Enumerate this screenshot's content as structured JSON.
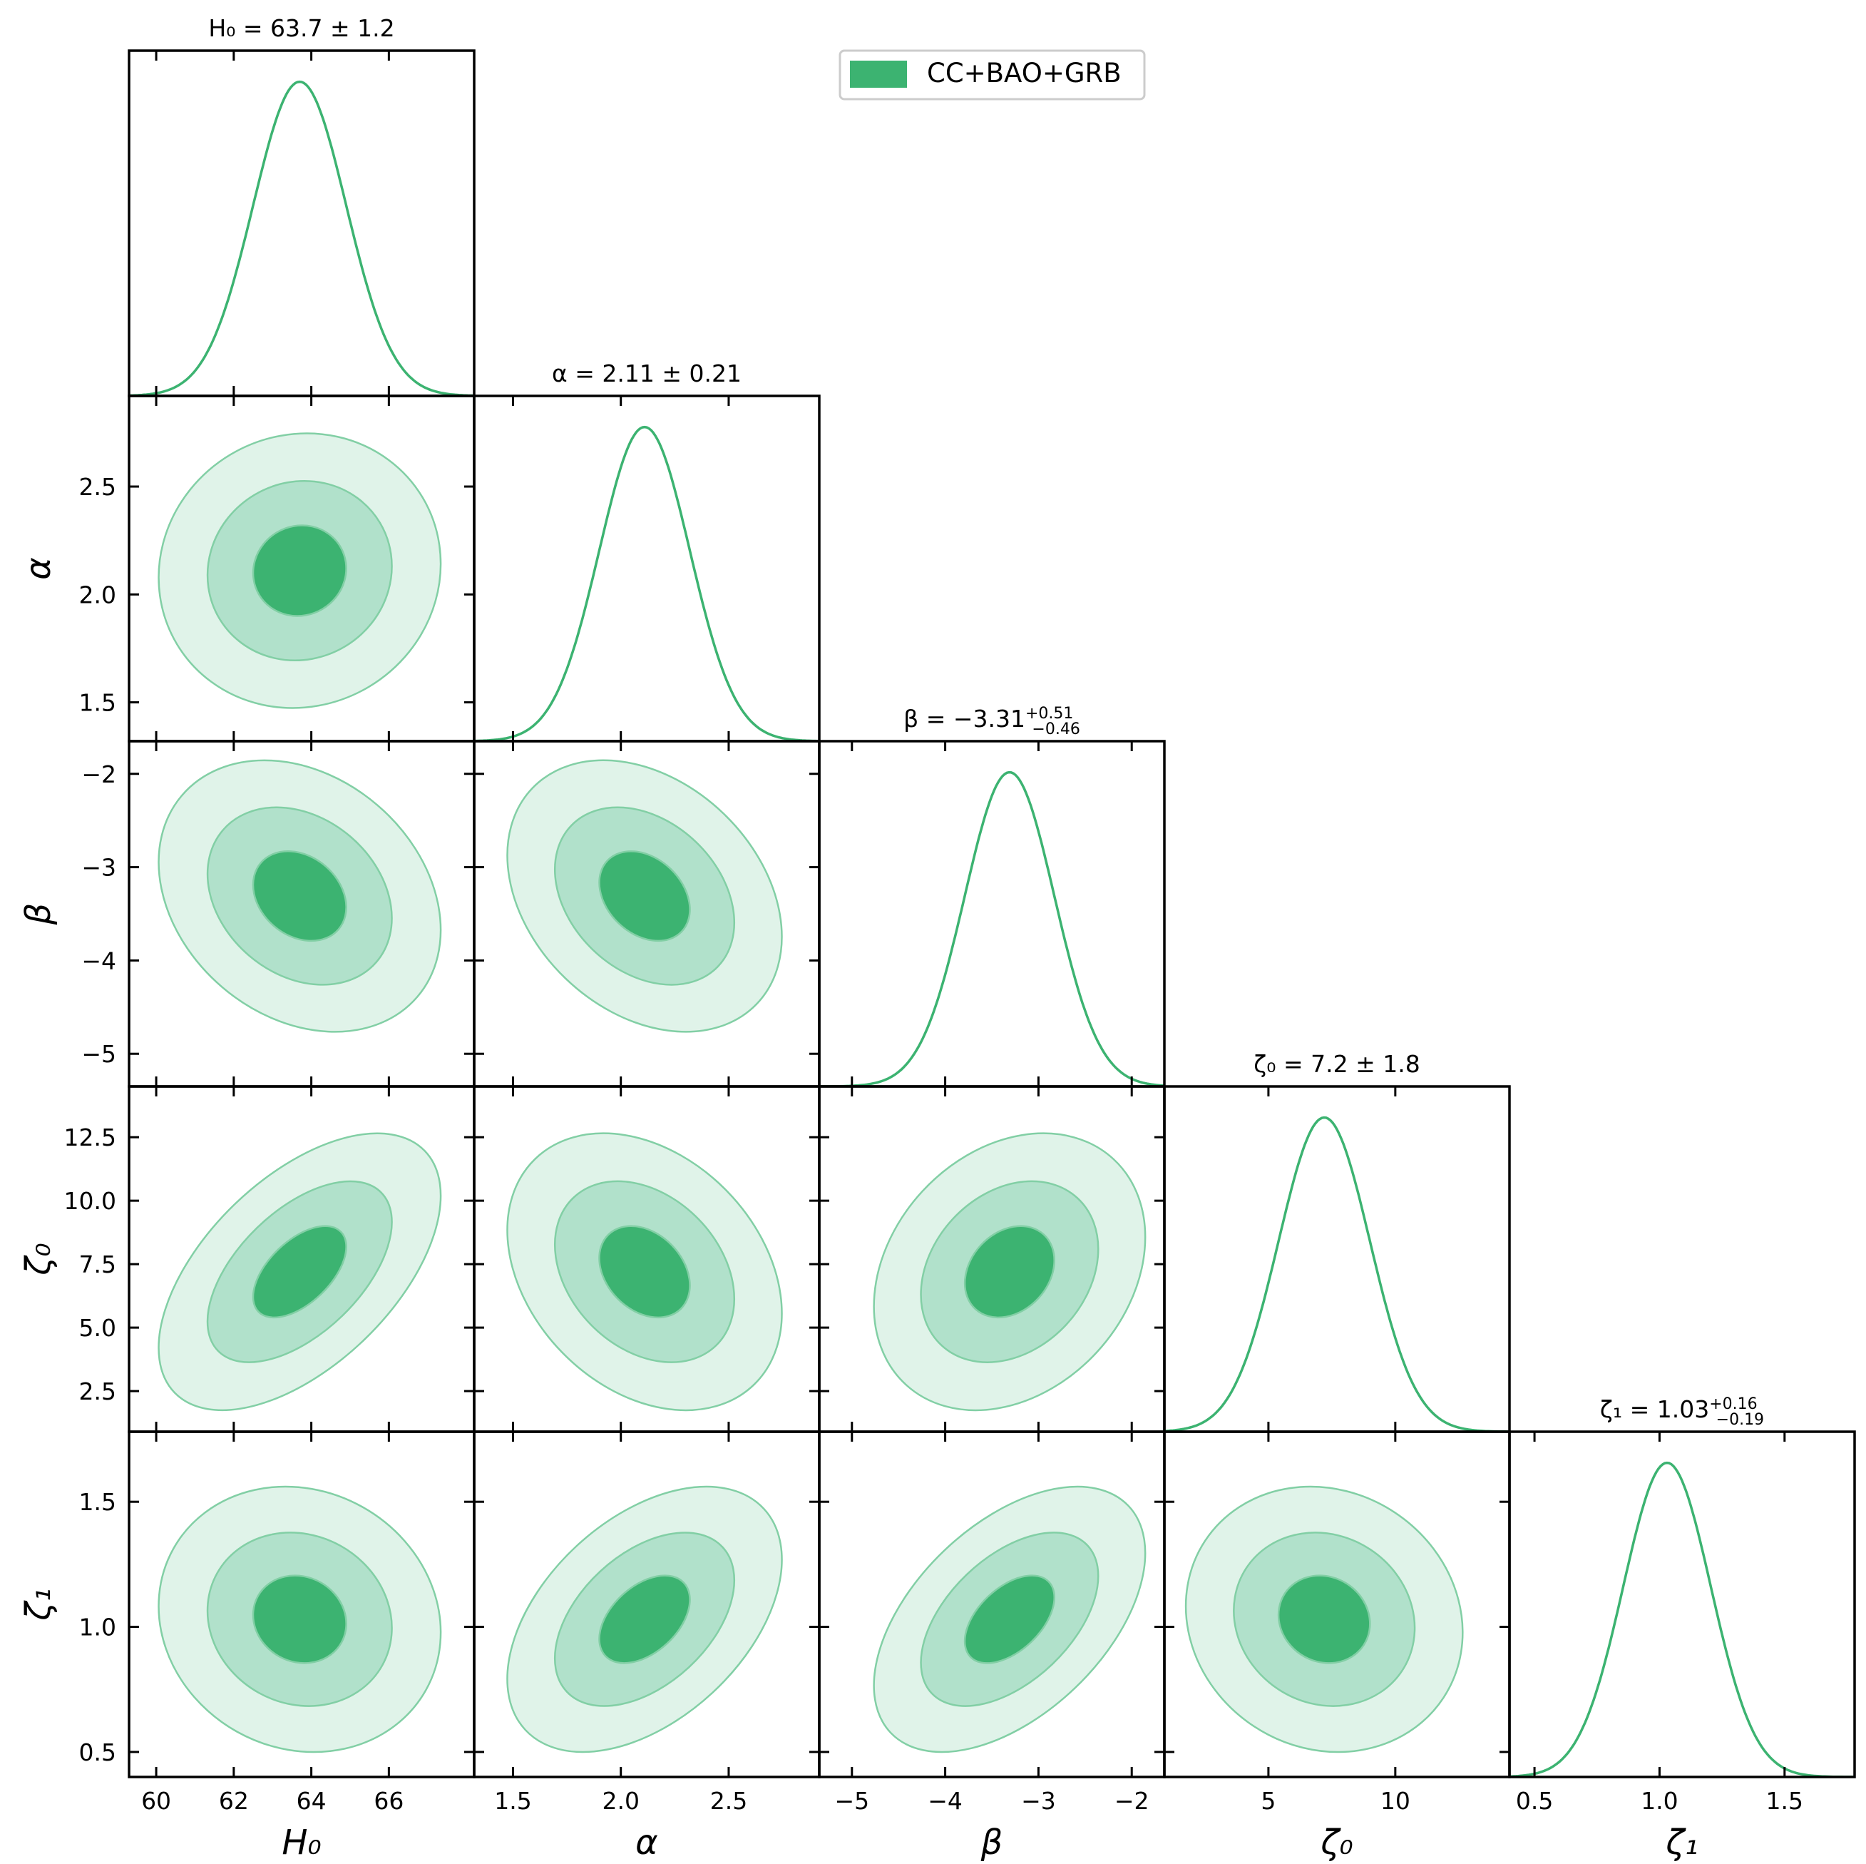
{
  "chart_data": {
    "type": "corner",
    "legend": {
      "label": "CC+BAO+GRB",
      "color": "#3cb371",
      "placement": "top-right"
    },
    "colors": {
      "line": "#3cb371",
      "fill_1sigma": "#3cb371",
      "fill_2sigma": "#b1e1cb",
      "fill_3sigma": "#e0f3e9",
      "contour_line": "#82cfa5",
      "frame": "#000000"
    },
    "parameters": [
      {
        "name": "H0",
        "label": "H₀",
        "mean": 63.7,
        "std": 1.2,
        "range": [
          59.3,
          68.2
        ],
        "ticks": [
          60,
          62,
          64,
          66
        ],
        "tick_labels": [
          "60",
          "62",
          "64",
          "66"
        ],
        "title": "H₀ = 63.7 ± 1.2"
      },
      {
        "name": "alpha",
        "label": "α",
        "mean": 2.11,
        "std": 0.21,
        "range": [
          1.32,
          2.92
        ],
        "ticks": [
          1.5,
          2.0,
          2.5
        ],
        "tick_labels": [
          "1.5",
          "2.0",
          "2.5"
        ],
        "title": "α = 2.11 ± 0.21"
      },
      {
        "name": "beta",
        "label": "β",
        "mean": -3.31,
        "std": 0.48,
        "range": [
          -5.35,
          -1.65
        ],
        "ticks": [
          -5,
          -4,
          -3,
          -2
        ],
        "tick_labels": [
          "−5",
          "−4",
          "−3",
          "−2"
        ],
        "title": "β = −3.31",
        "title_sup": "+0.51",
        "title_sub": "−0.46"
      },
      {
        "name": "zeta0",
        "label": "ζ₀",
        "mean": 7.2,
        "std": 1.8,
        "range": [
          0.9,
          14.5
        ],
        "ticks": [
          2.5,
          5.0,
          7.5,
          10.0,
          12.5
        ],
        "tick_labels": [
          "2.5",
          "5.0",
          "7.5",
          "10.0",
          "12.5"
        ],
        "x_ticks": [
          5,
          10
        ],
        "x_tick_labels": [
          "5",
          "10"
        ],
        "title": "ζ₀ = 7.2 ± 1.8"
      },
      {
        "name": "zeta1",
        "label": "ζ₁",
        "mean": 1.03,
        "std": 0.175,
        "range": [
          0.4,
          1.78
        ],
        "ticks": [
          0.5,
          1.0,
          1.5
        ],
        "tick_labels": [
          "0.5",
          "1.0",
          "1.5"
        ],
        "title": "ζ₁ = 1.03",
        "title_sup": "+0.16",
        "title_sub": "−0.19"
      }
    ],
    "correlations": [
      {
        "pair": [
          "H0",
          "alpha"
        ],
        "rho": 0.05
      },
      {
        "pair": [
          "H0",
          "beta"
        ],
        "rho": -0.25
      },
      {
        "pair": [
          "H0",
          "zeta0"
        ],
        "rho": 0.55
      },
      {
        "pair": [
          "H0",
          "zeta1"
        ],
        "rho": -0.1
      },
      {
        "pair": [
          "alpha",
          "beta"
        ],
        "rho": -0.3
      },
      {
        "pair": [
          "alpha",
          "zeta0"
        ],
        "rho": -0.3
      },
      {
        "pair": [
          "alpha",
          "zeta1"
        ],
        "rho": 0.45
      },
      {
        "pair": [
          "beta",
          "zeta0"
        ],
        "rho": 0.25
      },
      {
        "pair": [
          "beta",
          "zeta1"
        ],
        "rho": 0.5
      },
      {
        "pair": [
          "zeta0",
          "zeta1"
        ],
        "rho": -0.1
      }
    ],
    "contour_levels": [
      "1σ",
      "2σ",
      "3σ"
    ]
  }
}
